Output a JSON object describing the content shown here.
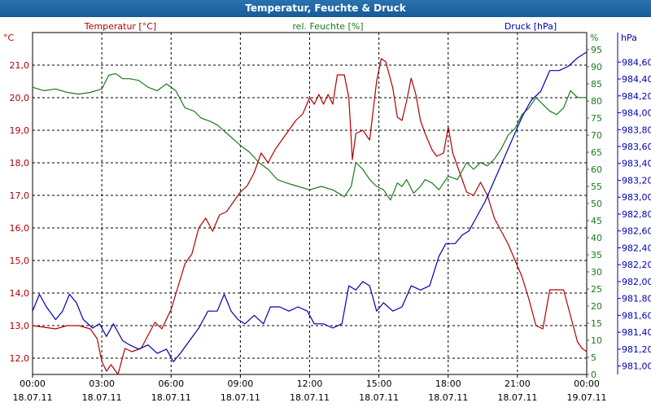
{
  "window": {
    "title": "Temperatur, Feuchte & Druck"
  },
  "colors": {
    "temperature": "#b00000",
    "humidity": "#1a7a1a",
    "pressure": "#0000b0",
    "grid": "#000000"
  },
  "chart_data": {
    "type": "line",
    "title": "Temperatur, Feuchte & Druck",
    "grid": true,
    "x_axis": {
      "range_hours": [
        0,
        24
      ],
      "ticks": [
        {
          "hour": 0,
          "time": "00:00",
          "date": "18.07.11"
        },
        {
          "hour": 3,
          "time": "03:00",
          "date": "18.07.11"
        },
        {
          "hour": 6,
          "time": "06:00",
          "date": "18.07.11"
        },
        {
          "hour": 9,
          "time": "09:00",
          "date": "18.07.11"
        },
        {
          "hour": 12,
          "time": "12:00",
          "date": "18.07.11"
        },
        {
          "hour": 15,
          "time": "15:00",
          "date": "18.07.11"
        },
        {
          "hour": 18,
          "time": "18:00",
          "date": "18.07.11"
        },
        {
          "hour": 21,
          "time": "21:00",
          "date": "18.07.11"
        },
        {
          "hour": 24,
          "time": "00:00",
          "date": "19.07.11"
        }
      ]
    },
    "axes": {
      "temperature": {
        "label": "Temperatur [°C]",
        "unit": "°C",
        "range": [
          11.5,
          22.0
        ],
        "ticks": [
          {
            "v": 12,
            "t": "12,0"
          },
          {
            "v": 13,
            "t": "13,0"
          },
          {
            "v": 14,
            "t": "14,0"
          },
          {
            "v": 15,
            "t": "15,0"
          },
          {
            "v": 16,
            "t": "16,0"
          },
          {
            "v": 17,
            "t": "17,0"
          },
          {
            "v": 18,
            "t": "18,0"
          },
          {
            "v": 19,
            "t": "19,0"
          },
          {
            "v": 20,
            "t": "20,0"
          },
          {
            "v": 21,
            "t": "21,0"
          }
        ]
      },
      "humidity": {
        "label": "rel. Feuchte [%]",
        "unit": "%",
        "range": [
          0,
          100
        ],
        "ticks": [
          {
            "v": 0,
            "t": "0"
          },
          {
            "v": 5,
            "t": "5"
          },
          {
            "v": 10,
            "t": "10"
          },
          {
            "v": 15,
            "t": "15"
          },
          {
            "v": 20,
            "t": "20"
          },
          {
            "v": 25,
            "t": "25"
          },
          {
            "v": 30,
            "t": "30"
          },
          {
            "v": 35,
            "t": "35"
          },
          {
            "v": 40,
            "t": "40"
          },
          {
            "v": 45,
            "t": "45"
          },
          {
            "v": 50,
            "t": "50"
          },
          {
            "v": 55,
            "t": "55"
          },
          {
            "v": 60,
            "t": "60"
          },
          {
            "v": 65,
            "t": "65"
          },
          {
            "v": 70,
            "t": "70"
          },
          {
            "v": 75,
            "t": "75"
          },
          {
            "v": 80,
            "t": "80"
          },
          {
            "v": 85,
            "t": "85"
          },
          {
            "v": 90,
            "t": "90"
          },
          {
            "v": 95,
            "t": "95"
          }
        ]
      },
      "pressure": {
        "label": "Druck [hPa]",
        "unit": "hPa",
        "range": [
          980.9,
          984.95
        ],
        "ticks": [
          {
            "v": 981.0,
            "t": "981,00"
          },
          {
            "v": 981.2,
            "t": "981,20"
          },
          {
            "v": 981.4,
            "t": "981,40"
          },
          {
            "v": 981.6,
            "t": "981,60"
          },
          {
            "v": 981.8,
            "t": "981,80"
          },
          {
            "v": 982.0,
            "t": "982,00"
          },
          {
            "v": 982.2,
            "t": "982,20"
          },
          {
            "v": 982.4,
            "t": "982,40"
          },
          {
            "v": 982.6,
            "t": "982,60"
          },
          {
            "v": 982.8,
            "t": "982,80"
          },
          {
            "v": 983.0,
            "t": "983,00"
          },
          {
            "v": 983.2,
            "t": "983,20"
          },
          {
            "v": 983.4,
            "t": "983,40"
          },
          {
            "v": 983.6,
            "t": "983,60"
          },
          {
            "v": 983.8,
            "t": "983,80"
          },
          {
            "v": 984.0,
            "t": "984,00"
          },
          {
            "v": 984.2,
            "t": "984,20"
          },
          {
            "v": 984.4,
            "t": "984,40"
          },
          {
            "v": 984.6,
            "t": "984,60"
          }
        ]
      }
    },
    "series": [
      {
        "name": "Temperatur [°C]",
        "axis": "temperature",
        "points": [
          [
            0,
            13.0
          ],
          [
            0.5,
            12.95
          ],
          [
            1,
            12.9
          ],
          [
            1.5,
            13.0
          ],
          [
            2,
            13.0
          ],
          [
            2.5,
            12.9
          ],
          [
            2.8,
            12.6
          ],
          [
            3.0,
            11.9
          ],
          [
            3.2,
            11.6
          ],
          [
            3.4,
            11.8
          ],
          [
            3.7,
            11.5
          ],
          [
            4.0,
            12.3
          ],
          [
            4.3,
            12.2
          ],
          [
            4.7,
            12.3
          ],
          [
            5.0,
            12.7
          ],
          [
            5.3,
            13.1
          ],
          [
            5.6,
            12.9
          ],
          [
            6.0,
            13.5
          ],
          [
            6.3,
            14.2
          ],
          [
            6.6,
            14.9
          ],
          [
            6.9,
            15.2
          ],
          [
            7.2,
            16.0
          ],
          [
            7.5,
            16.3
          ],
          [
            7.8,
            15.9
          ],
          [
            8.1,
            16.4
          ],
          [
            8.4,
            16.5
          ],
          [
            8.7,
            16.8
          ],
          [
            9.0,
            17.1
          ],
          [
            9.3,
            17.3
          ],
          [
            9.6,
            17.7
          ],
          [
            9.9,
            18.3
          ],
          [
            10.2,
            18.0
          ],
          [
            10.5,
            18.4
          ],
          [
            10.8,
            18.7
          ],
          [
            11.1,
            19.0
          ],
          [
            11.4,
            19.3
          ],
          [
            11.7,
            19.5
          ],
          [
            12.0,
            20.0
          ],
          [
            12.2,
            19.8
          ],
          [
            12.4,
            20.1
          ],
          [
            12.6,
            19.8
          ],
          [
            12.8,
            20.1
          ],
          [
            13.0,
            19.8
          ],
          [
            13.2,
            20.7
          ],
          [
            13.5,
            20.7
          ],
          [
            13.7,
            20.0
          ],
          [
            13.85,
            18.1
          ],
          [
            14.0,
            18.9
          ],
          [
            14.3,
            19.0
          ],
          [
            14.6,
            18.7
          ],
          [
            14.9,
            20.5
          ],
          [
            15.1,
            21.2
          ],
          [
            15.3,
            21.1
          ],
          [
            15.6,
            20.3
          ],
          [
            15.8,
            19.4
          ],
          [
            16.0,
            19.3
          ],
          [
            16.2,
            19.9
          ],
          [
            16.4,
            20.6
          ],
          [
            16.6,
            20.1
          ],
          [
            16.8,
            19.3
          ],
          [
            17.0,
            18.9
          ],
          [
            17.3,
            18.4
          ],
          [
            17.5,
            18.2
          ],
          [
            17.8,
            18.3
          ],
          [
            18.0,
            19.1
          ],
          [
            18.2,
            18.3
          ],
          [
            18.5,
            17.7
          ],
          [
            18.8,
            17.1
          ],
          [
            19.1,
            17.0
          ],
          [
            19.4,
            17.4
          ],
          [
            19.7,
            17.0
          ],
          [
            20.0,
            16.3
          ],
          [
            20.3,
            15.9
          ],
          [
            20.6,
            15.5
          ],
          [
            20.9,
            15.0
          ],
          [
            21.2,
            14.5
          ],
          [
            21.5,
            13.8
          ],
          [
            21.8,
            13.0
          ],
          [
            22.1,
            12.9
          ],
          [
            22.4,
            14.1
          ],
          [
            22.7,
            14.1
          ],
          [
            23.0,
            14.1
          ],
          [
            23.3,
            13.3
          ],
          [
            23.6,
            12.5
          ],
          [
            23.8,
            12.3
          ],
          [
            24.0,
            12.2
          ]
        ]
      },
      {
        "name": "rel. Feuchte [%]",
        "axis": "humidity",
        "points": [
          [
            0,
            84
          ],
          [
            0.5,
            83
          ],
          [
            1,
            83.5
          ],
          [
            1.5,
            82.5
          ],
          [
            2,
            82
          ],
          [
            2.5,
            82.5
          ],
          [
            3.0,
            83.5
          ],
          [
            3.3,
            87.5
          ],
          [
            3.6,
            88
          ],
          [
            3.9,
            86.5
          ],
          [
            4.2,
            86.5
          ],
          [
            4.6,
            86
          ],
          [
            5.0,
            84
          ],
          [
            5.4,
            83
          ],
          [
            5.8,
            85
          ],
          [
            6.2,
            83
          ],
          [
            6.6,
            78
          ],
          [
            7.0,
            77
          ],
          [
            7.3,
            75
          ],
          [
            7.7,
            74
          ],
          [
            8.0,
            73
          ],
          [
            8.5,
            70
          ],
          [
            9.0,
            67
          ],
          [
            9.4,
            65
          ],
          [
            9.8,
            62
          ],
          [
            10.2,
            60
          ],
          [
            10.6,
            57
          ],
          [
            11.0,
            56
          ],
          [
            11.5,
            55
          ],
          [
            12.0,
            54
          ],
          [
            12.5,
            55
          ],
          [
            13.0,
            54
          ],
          [
            13.5,
            52
          ],
          [
            13.8,
            55
          ],
          [
            14.0,
            62
          ],
          [
            14.3,
            60
          ],
          [
            14.6,
            57
          ],
          [
            14.9,
            55
          ],
          [
            15.2,
            54
          ],
          [
            15.5,
            51
          ],
          [
            15.8,
            56
          ],
          [
            16.0,
            55
          ],
          [
            16.2,
            57
          ],
          [
            16.5,
            53
          ],
          [
            16.8,
            55
          ],
          [
            17.0,
            57
          ],
          [
            17.3,
            56
          ],
          [
            17.6,
            54
          ],
          [
            18.0,
            58
          ],
          [
            18.4,
            57
          ],
          [
            18.8,
            62
          ],
          [
            19.1,
            60
          ],
          [
            19.4,
            62
          ],
          [
            19.7,
            61
          ],
          [
            20.0,
            63
          ],
          [
            20.3,
            66
          ],
          [
            20.6,
            70
          ],
          [
            20.9,
            72
          ],
          [
            21.2,
            76
          ],
          [
            21.5,
            78
          ],
          [
            21.8,
            81
          ],
          [
            22.1,
            79
          ],
          [
            22.4,
            77
          ],
          [
            22.7,
            76
          ],
          [
            23.0,
            78
          ],
          [
            23.3,
            83
          ],
          [
            23.6,
            81
          ],
          [
            24.0,
            81
          ]
        ]
      },
      {
        "name": "Druck [hPa]",
        "axis": "pressure",
        "points": [
          [
            0,
            981.65
          ],
          [
            0.3,
            981.85
          ],
          [
            0.6,
            981.7
          ],
          [
            1.0,
            981.55
          ],
          [
            1.3,
            981.65
          ],
          [
            1.6,
            981.85
          ],
          [
            1.9,
            981.75
          ],
          [
            2.2,
            981.55
          ],
          [
            2.6,
            981.45
          ],
          [
            2.9,
            981.5
          ],
          [
            3.2,
            981.35
          ],
          [
            3.5,
            981.5
          ],
          [
            3.9,
            981.3
          ],
          [
            4.2,
            981.25
          ],
          [
            4.6,
            981.2
          ],
          [
            5.0,
            981.25
          ],
          [
            5.4,
            981.15
          ],
          [
            5.8,
            981.2
          ],
          [
            6.1,
            981.05
          ],
          [
            6.4,
            981.15
          ],
          [
            6.8,
            981.3
          ],
          [
            7.2,
            981.45
          ],
          [
            7.6,
            981.65
          ],
          [
            8.0,
            981.65
          ],
          [
            8.3,
            981.85
          ],
          [
            8.6,
            981.65
          ],
          [
            8.9,
            981.55
          ],
          [
            9.2,
            981.5
          ],
          [
            9.6,
            981.6
          ],
          [
            10.0,
            981.5
          ],
          [
            10.3,
            981.7
          ],
          [
            10.7,
            981.7
          ],
          [
            11.1,
            981.65
          ],
          [
            11.5,
            981.7
          ],
          [
            11.9,
            981.65
          ],
          [
            12.2,
            981.5
          ],
          [
            12.6,
            981.5
          ],
          [
            13.0,
            981.45
          ],
          [
            13.4,
            981.5
          ],
          [
            13.7,
            981.95
          ],
          [
            14.0,
            981.9
          ],
          [
            14.3,
            982.0
          ],
          [
            14.6,
            981.95
          ],
          [
            14.9,
            981.65
          ],
          [
            15.2,
            981.75
          ],
          [
            15.6,
            981.65
          ],
          [
            16.0,
            981.7
          ],
          [
            16.4,
            981.95
          ],
          [
            16.8,
            981.9
          ],
          [
            17.2,
            981.95
          ],
          [
            17.6,
            982.3
          ],
          [
            17.9,
            982.45
          ],
          [
            18.3,
            982.45
          ],
          [
            18.6,
            982.55
          ],
          [
            18.9,
            982.6
          ],
          [
            19.2,
            982.75
          ],
          [
            19.6,
            982.95
          ],
          [
            20.0,
            983.2
          ],
          [
            20.4,
            983.45
          ],
          [
            20.8,
            983.7
          ],
          [
            21.2,
            983.95
          ],
          [
            21.6,
            984.15
          ],
          [
            22.0,
            984.25
          ],
          [
            22.4,
            984.5
          ],
          [
            22.8,
            984.5
          ],
          [
            23.2,
            984.55
          ],
          [
            23.6,
            984.65
          ],
          [
            24.0,
            984.72
          ]
        ]
      }
    ]
  }
}
